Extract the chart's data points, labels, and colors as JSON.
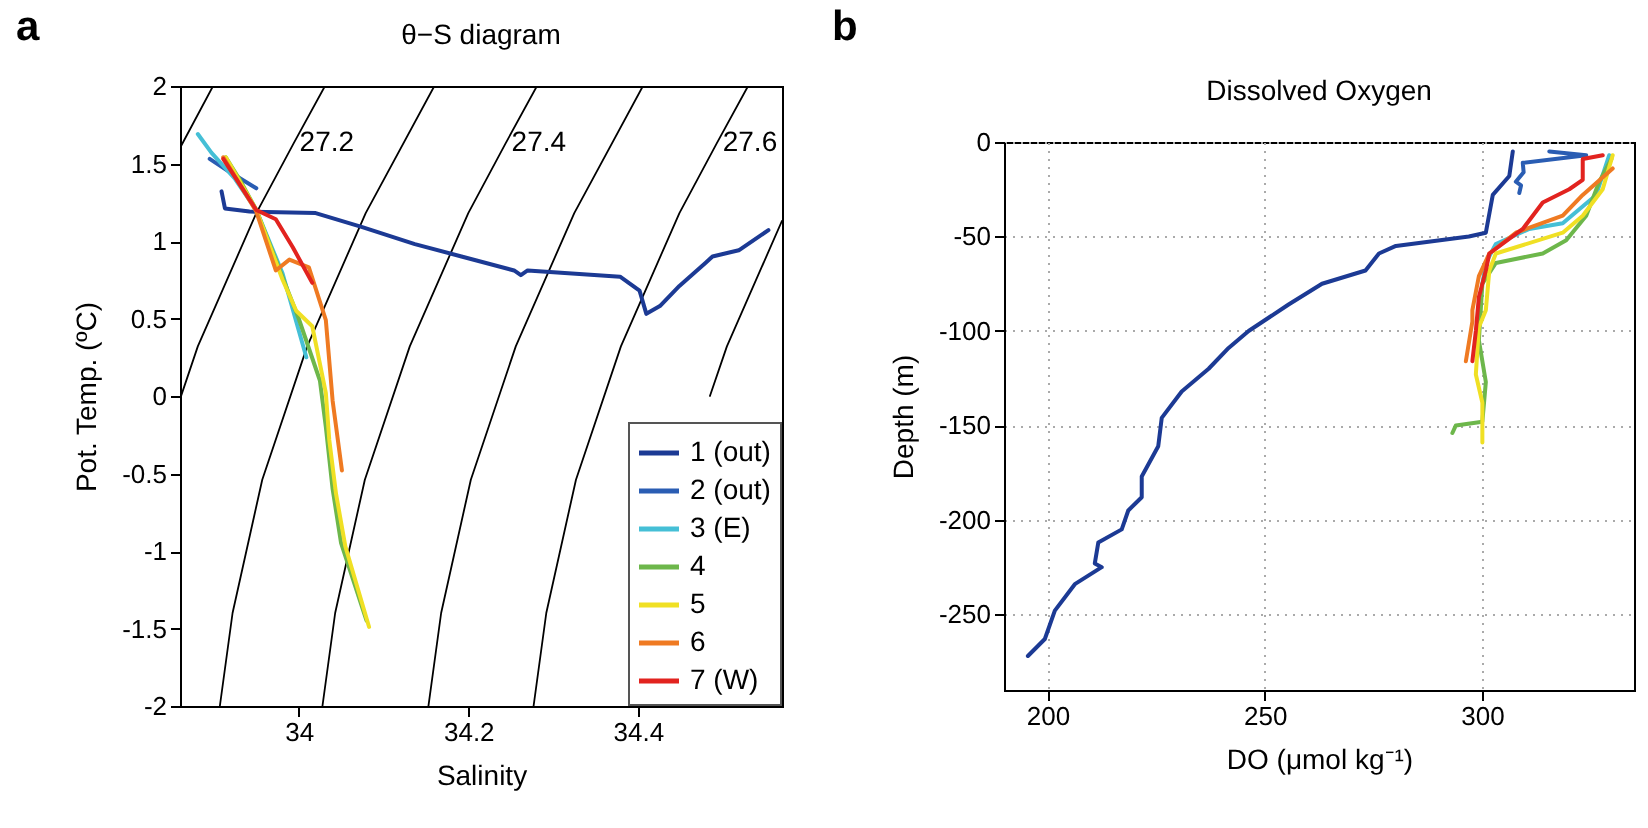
{
  "chart_data": [
    {
      "type": "line",
      "title": "θ−S diagram",
      "xlabel": "Salinity",
      "ylabel": "Pot. Temp. (ºC)",
      "xlim": [
        33.86,
        34.57
      ],
      "xticks": [
        34,
        34.2,
        34.4
      ],
      "ylim": [
        -2,
        2
      ],
      "yticks": [
        -2,
        -1.5,
        -1,
        -0.5,
        0,
        0.5,
        1,
        1.5,
        2
      ],
      "legend": "bottom right",
      "annotations": [
        "a",
        {
          "text": "27.2",
          "x": 33.994,
          "y": 1.63
        },
        {
          "text": "27.4",
          "x": 34.244,
          "y": 1.63
        },
        {
          "text": "27.6",
          "x": 34.493,
          "y": 1.63
        }
      ],
      "series": [
        {
          "color": "#000000",
          "x": [
            33.899,
            33.86
          ],
          "values": [
            2,
            1.6
          ]
        },
        {
          "color": "#000000",
          "x": [
            34.031,
            33.994,
            33.95,
            33.881,
            33.86
          ],
          "values": [
            2,
            1.63,
            1.18,
            0.32,
            -0.02
          ]
        },
        {
          "color": "#000000",
          "x": [
            34.16,
            34.079,
            34.01,
            33.957,
            33.922,
            33.907
          ],
          "values": [
            2,
            1.18,
            0.32,
            -0.54,
            -1.4,
            -2
          ]
        },
        {
          "color": "#000000",
          "x": [
            34.281,
            34.244,
            34.2,
            34.131,
            34.078,
            34.043,
            34.028
          ],
          "values": [
            2,
            1.63,
            1.18,
            0.32,
            -0.54,
            -1.4,
            -2
          ]
        },
        {
          "color": "#000000",
          "x": [
            34.406,
            34.325,
            34.256,
            34.203,
            34.168,
            34.153
          ],
          "values": [
            2,
            1.18,
            0.32,
            -0.54,
            -1.4,
            -2
          ]
        },
        {
          "color": "#000000",
          "x": [
            34.53,
            34.493,
            34.449,
            34.38,
            34.327,
            34.292,
            34.277
          ],
          "values": [
            2,
            1.63,
            1.18,
            0.32,
            -0.54,
            -1.4,
            -2
          ]
        },
        {
          "color": "#000000",
          "x": [
            34.57,
            34.505,
            34.485
          ],
          "values": [
            1.13,
            0.32,
            0
          ]
        },
        {
          "name": "1 (out)",
          "color": "#1c3a94",
          "x": [
            33.909,
            33.913,
            33.942,
            34.02,
            34.075,
            34.137,
            34.192,
            34.254,
            34.262,
            34.27,
            34.379,
            34.402,
            34.41,
            34.426,
            34.449,
            34.48,
            34.488,
            34.519,
            34.554
          ],
          "values": [
            1.32,
            1.21,
            1.19,
            1.18,
            1.09,
            0.98,
            0.9,
            0.81,
            0.78,
            0.81,
            0.77,
            0.68,
            0.53,
            0.58,
            0.71,
            0.86,
            0.9,
            0.94,
            1.07
          ]
        },
        {
          "name": "2 (out)",
          "color": "#2a5db3",
          "x": [
            33.895,
            33.92,
            33.95
          ],
          "values": [
            1.53,
            1.44,
            1.34
          ]
        },
        {
          "name": "3 (E)",
          "color": "#45bfd6",
          "x": [
            33.881,
            33.897,
            33.925,
            33.95,
            33.981,
            34.009
          ],
          "values": [
            1.69,
            1.57,
            1.4,
            1.2,
            0.79,
            0.25
          ]
        },
        {
          "name": "4",
          "color": "#6db74b",
          "x": [
            33.914,
            33.93,
            33.95,
            33.975,
            34.0,
            34.025,
            34.032,
            34.04,
            34.05,
            34.08
          ],
          "values": [
            1.54,
            1.4,
            1.2,
            0.85,
            0.5,
            0.1,
            -0.2,
            -0.6,
            -0.95,
            -1.45
          ]
        },
        {
          "name": "5",
          "color": "#f0e024",
          "x": [
            33.914,
            33.95,
            33.981,
            33.997,
            34.016,
            34.032,
            34.036,
            34.044,
            34.055,
            34.083
          ],
          "values": [
            1.54,
            1.2,
            0.75,
            0.55,
            0.45,
            0.02,
            -0.28,
            -0.63,
            -0.97,
            -1.49
          ]
        },
        {
          "name": "6",
          "color": "#ef7a22",
          "x": [
            33.911,
            33.95,
            33.973,
            33.989,
            34.012,
            34.032,
            34.04,
            34.051
          ],
          "values": [
            1.54,
            1.19,
            0.81,
            0.88,
            0.83,
            0.49,
            -0.03,
            -0.48
          ]
        },
        {
          "name": "7 (W)",
          "color": "#e2231f",
          "x": [
            33.911,
            33.95,
            33.973,
            33.993,
            34.016
          ],
          "values": [
            1.53,
            1.2,
            1.14,
            0.96,
            0.73
          ]
        }
      ]
    },
    {
      "type": "line",
      "title": "Dissolved Oxygen",
      "xlabel": "DO (μmol kg⁻¹)",
      "ylabel": "Depth (m)",
      "xlim": [
        190,
        335
      ],
      "xticks": [
        200,
        250,
        300
      ],
      "ylim": [
        -290,
        0
      ],
      "yticks": [
        -250,
        -200,
        -150,
        -100,
        -50,
        0
      ],
      "grid": true,
      "annotations": [
        "b"
      ],
      "series": [
        {
          "color": "#1c3a94",
          "x": [
            307.1,
            306.3,
            302.5,
            300.9,
            297.0,
            280.2,
            276.3,
            273.2,
            263.2,
            255.5,
            250.9,
            246.3,
            241.7,
            237.1,
            230.9,
            226.3,
            225.5,
            221.7,
            221.7,
            218.6,
            217.1,
            211.7,
            210.9,
            212.5,
            206.3,
            201.7,
            199.4,
            195.5
          ],
          "values": [
            -5,
            -18,
            -28,
            -48,
            -50,
            -55,
            -59,
            -68,
            -75,
            -86,
            -93,
            -100,
            -109,
            -120,
            -132,
            -146,
            -161,
            -177,
            -188,
            -195,
            -205,
            -212,
            -223,
            -225,
            -234,
            -248,
            -263,
            -272
          ]
        },
        {
          "color": "#2a5db3",
          "x": [
            315.5,
            324.0,
            309.4,
            309.6,
            307.8,
            309.0,
            308.6
          ],
          "values": [
            -5,
            -7,
            -11,
            -16,
            -21,
            -23,
            -27
          ]
        },
        {
          "color": "#45bfd6",
          "x": [
            329.3,
            326.3,
            318.6,
            310.9,
            303.2,
            300.9,
            300.1
          ],
          "values": [
            -7,
            -28,
            -43,
            -46,
            -54,
            -64,
            -75
          ]
        },
        {
          "color": "#6db74b",
          "x": [
            329.8,
            327.0,
            324.0,
            319.4,
            314.0,
            303.2,
            300.1,
            299.3,
            300.9,
            300.1,
            294.0,
            293.2
          ],
          "values": [
            -9,
            -21,
            -39,
            -52,
            -59,
            -64,
            -75,
            -105,
            -127,
            -148,
            -150,
            -154
          ]
        },
        {
          "color": "#f0e024",
          "x": [
            330.1,
            327.8,
            323.2,
            318.6,
            303.2,
            301.7,
            300.9,
            299.3,
            298.6,
            300.1,
            300.1
          ],
          "values": [
            -7,
            -25,
            -39,
            -48,
            -59,
            -68,
            -89,
            -98,
            -123,
            -138,
            -159
          ]
        },
        {
          "color": "#ef7a22",
          "x": [
            330.1,
            323.2,
            318.6,
            307.8,
            301.7,
            299.3,
            297.8,
            297.8,
            296.3
          ],
          "values": [
            -14,
            -28,
            -39,
            -48,
            -59,
            -71,
            -89,
            -95,
            -116
          ]
        },
        {
          "color": "#e2231f",
          "x": [
            327.8,
            323.2,
            323.2,
            320.1,
            314.0,
            309.4,
            301.7,
            300.9,
            299.3,
            298.6,
            297.8
          ],
          "values": [
            -7,
            -9,
            -20,
            -25,
            -32,
            -46,
            -59,
            -68,
            -82,
            -100,
            -116
          ]
        }
      ]
    }
  ]
}
